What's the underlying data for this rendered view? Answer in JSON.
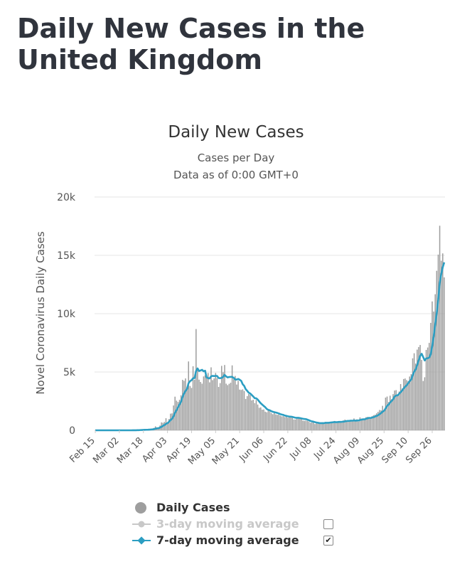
{
  "page": {
    "title": "Daily New Cases in the United Kingdom"
  },
  "chart_data": {
    "type": "bar",
    "title": "Daily New Cases",
    "subtitle_lines": [
      "Cases per Day",
      "Data as of 0:00 GMT+0"
    ],
    "ylabel": "Novel Coronavirus Daily Cases",
    "xlabel": "",
    "ylim": [
      0,
      20000
    ],
    "y_ticks": [
      0,
      5000,
      10000,
      15000,
      20000
    ],
    "y_tick_labels": [
      "0",
      "5k",
      "10k",
      "15k",
      "20k"
    ],
    "x_tick_labels": [
      "Feb 15",
      "Mar 02",
      "Mar 18",
      "Apr 03",
      "Apr 19",
      "May 05",
      "May 21",
      "Jun 06",
      "Jun 22",
      "Jul 08",
      "Jul 24",
      "Aug 09",
      "Aug 25",
      "Sep 10",
      "Sep 26"
    ],
    "x_tick_interval_days": 16,
    "grid": true,
    "legend_position": "bottom",
    "series": [
      {
        "name": "Daily Cases",
        "type": "bar",
        "color": "#9e9e9e",
        "visible": true,
        "values": [
          0,
          0,
          0,
          0,
          0,
          0,
          0,
          0,
          0,
          0,
          0,
          0,
          0,
          0,
          0,
          0,
          0,
          0,
          0,
          0,
          0,
          0,
          0,
          2,
          2,
          5,
          13,
          17,
          34,
          20,
          64,
          46,
          46,
          65,
          48,
          52,
          83,
          134,
          117,
          208,
          342,
          251,
          152,
          407,
          676,
          643,
          714,
          1035,
          665,
          967,
          1427,
          1452,
          2129,
          2885,
          2546,
          2433,
          2619,
          3009,
          4324,
          4244,
          4450,
          3735,
          5903,
          3802,
          3634,
          5491,
          4344,
          8681,
          5288,
          4342,
          4143,
          3997,
          4617,
          4713,
          4619,
          4916,
          4113,
          5399,
          4301,
          4451,
          4919,
          4466,
          3718,
          4045,
          5525,
          4976,
          5599,
          4000,
          3875,
          3985,
          4076,
          5567,
          4369,
          4658,
          3925,
          4242,
          3491,
          3460,
          3512,
          3375,
          2686,
          2930,
          3110,
          3029,
          2565,
          2618,
          2335,
          2599,
          2208,
          1928,
          1967,
          1768,
          1787,
          1600,
          1549,
          1692,
          1636,
          1483,
          1384,
          1545,
          1364,
          1325,
          1360,
          1256,
          1200,
          1210,
          1137,
          1177,
          1085,
          1201,
          1175,
          1069,
          930,
          928,
          1111,
          1098,
          1058,
          968,
          837,
          810,
          827,
          812,
          757,
          653,
          669,
          669,
          540,
          606,
          627,
          582,
          609,
          682,
          646,
          726,
          621,
          645,
          719,
          712,
          753,
          798,
          647,
          658,
          762,
          719,
          782,
          849,
          919,
          857,
          758,
          807,
          816,
          760,
          1017,
          775,
          945,
          749,
          1108,
          1012,
          1013,
          969,
          1127,
          1156,
          1080,
          1045,
          1213,
          1296,
          1341,
          1458,
          1582,
          1742,
          1712,
          2099,
          1752,
          2805,
          2895,
          2420,
          2966,
          2661,
          3102,
          3411,
          3446,
          2991,
          3318,
          3962,
          3581,
          4398,
          4441,
          4306,
          4218,
          4611,
          4813,
          6173,
          6604,
          5727,
          6919,
          7142,
          7314,
          6037,
          4228,
          4549,
          6892,
          7100,
          7494,
          9212,
          11048,
          10184,
          11667,
          13675,
          15062,
          17539,
          14541,
          15166,
          13111
        ]
      },
      {
        "name": "3-day moving average",
        "type": "line",
        "color": "#c8c8c8",
        "visible": false
      },
      {
        "name": "7-day moving average",
        "type": "line",
        "color": "#2c9ec2",
        "visible": true
      }
    ]
  },
  "legend": {
    "items": [
      {
        "label": "Daily Cases",
        "color": "#9e9e9e",
        "marker": "circle",
        "visible": true,
        "has_checkbox": false
      },
      {
        "label": "3-day moving average",
        "color": "#c8c8c8",
        "marker": "line-dot",
        "visible": false,
        "has_checkbox": true
      },
      {
        "label": "7-day moving average",
        "color": "#2c9ec2",
        "marker": "line-diamond",
        "visible": true,
        "has_checkbox": true
      }
    ],
    "checked_mark": "✔"
  }
}
